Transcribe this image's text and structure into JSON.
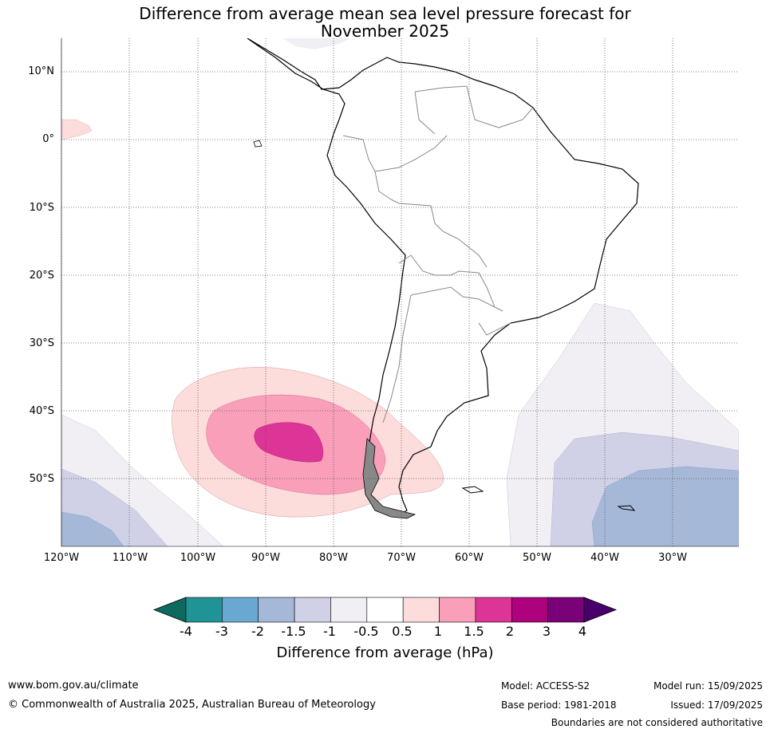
{
  "title_line1": "Difference from average mean sea level pressure forecast for",
  "title_line2": "November 2025",
  "map": {
    "lat_labels": [
      "10°N",
      "0°",
      "10°S",
      "20°S",
      "30°S",
      "40°S",
      "50°S"
    ],
    "lon_labels": [
      "120°W",
      "110°W",
      "100°W",
      "90°W",
      "80°W",
      "70°W",
      "60°W",
      "50°W",
      "40°W",
      "30°W"
    ],
    "region": "South America and surrounding Pacific / Atlantic oceans",
    "anomaly_areas": [
      {
        "location": "Southeast Pacific, west of southern Chile",
        "max_hpa": "1.5 to 2",
        "colour": "#dd3497"
      },
      {
        "location": "Southwest Atlantic, east of Patagonia",
        "min_hpa": "-2 to -1.5",
        "colour": "#a6b8d8"
      },
      {
        "location": "Far southwest Pacific (lower left)",
        "min_hpa": "-2 to -1.5",
        "colour": "#a6b8d8"
      },
      {
        "location": "Equatorial Pacific near 120°W",
        "value_hpa": "0.5 to 1",
        "colour": "#fddcdc"
      }
    ]
  },
  "colorbar": {
    "ticks": [
      "-4",
      "-3",
      "-2",
      "-1.5",
      "-1",
      "-0.5",
      "0.5",
      "1",
      "1.5",
      "2",
      "3",
      "4"
    ],
    "colours": [
      "#0e6a5e",
      "#1f9396",
      "#69a9d1",
      "#a6b8d8",
      "#d0d1e6",
      "#f1eef4",
      "#ffffff",
      "#fddcdc",
      "#f99fb9",
      "#dd3497",
      "#ae017e",
      "#7a0177",
      "#49006a"
    ],
    "label": "Difference from average (hPa)"
  },
  "footer": {
    "website": "www.bom.gov.au/climate",
    "copyright": "© Commonwealth of Australia 2025, Australian Bureau of Meteorology",
    "model": "Model: ACCESS-S2",
    "base_period": "Base period: 1981-2018",
    "model_run": "Model run: 15/09/2025",
    "issued": "Issued: 17/09/2025",
    "disclaimer": "Boundaries are not considered authoritative"
  }
}
